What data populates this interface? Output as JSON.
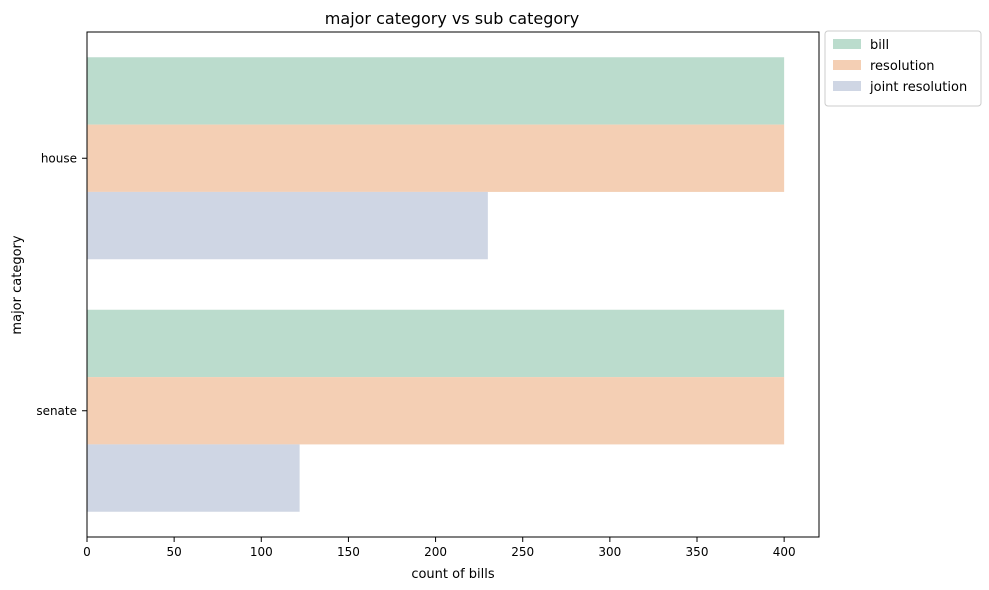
{
  "chart_data": {
    "type": "bar",
    "orientation": "horizontal",
    "title": "major category vs sub category",
    "xlabel": "count of bills",
    "ylabel": "major category",
    "categories": [
      "house",
      "senate"
    ],
    "series": [
      {
        "name": "bill",
        "values": [
          400,
          400
        ],
        "color": "#bbdccd"
      },
      {
        "name": "resolution",
        "values": [
          400,
          400
        ],
        "color": "#f4cfb4"
      },
      {
        "name": "joint resolution",
        "values": [
          230,
          122
        ],
        "color": "#cfd6e4"
      }
    ],
    "xlim": [
      0,
      420
    ],
    "xticks": [
      0,
      50,
      100,
      150,
      200,
      250,
      300,
      350,
      400
    ],
    "grid": false,
    "legend_position": "outside-top-right"
  }
}
